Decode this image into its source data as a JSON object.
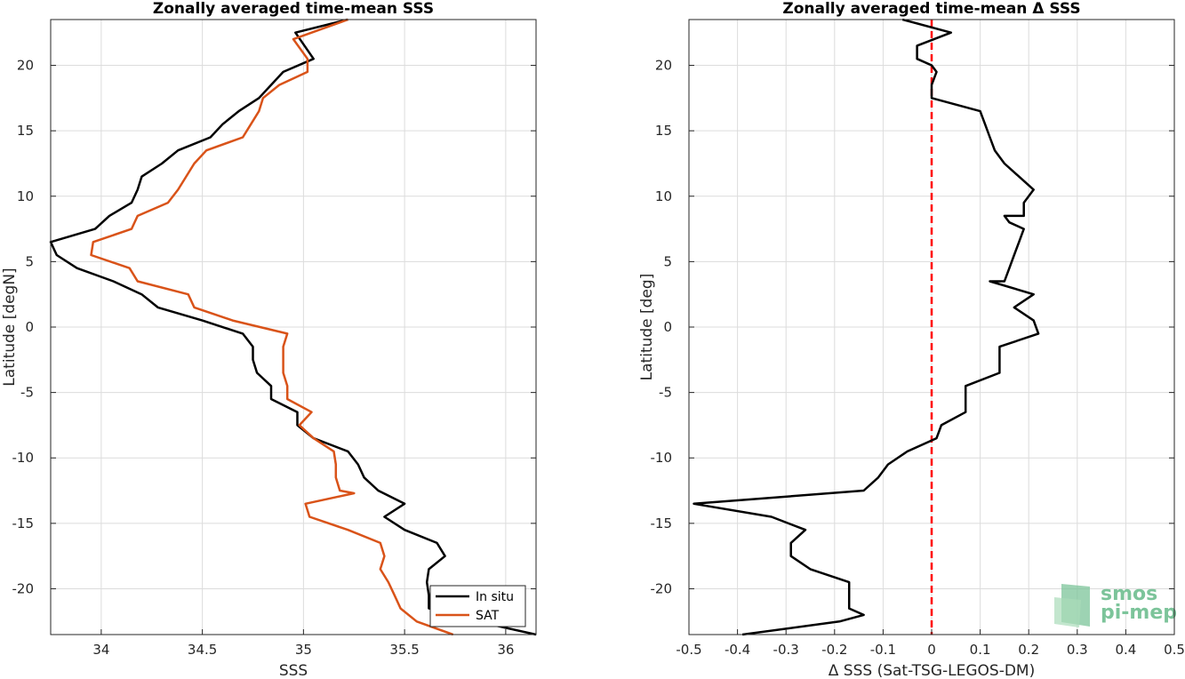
{
  "chart_data": [
    {
      "type": "line",
      "title": "Zonally averaged time-mean SSS",
      "xlabel": "SSS",
      "ylabel": "Latitude [degN]",
      "xlim": [
        33.75,
        36.15
      ],
      "ylim": [
        -23.5,
        23.5
      ],
      "xticks": [
        34,
        34.5,
        35,
        35.5,
        36
      ],
      "xtick_labels": [
        "34",
        "34.5",
        "35",
        "35.5",
        "36"
      ],
      "yticks": [
        -20,
        -15,
        -10,
        -5,
        0,
        5,
        10,
        15,
        20
      ],
      "ytick_labels": [
        "-20",
        "-15",
        "-10",
        "-5",
        "0",
        "5",
        "10",
        "15",
        "20"
      ],
      "grid": true,
      "legend_position": "bottom-right",
      "series": [
        {
          "name": "In situ",
          "color": "#000000",
          "points": [
            [
              35.22,
              23.5
            ],
            [
              34.96,
              22.5
            ],
            [
              35.05,
              20.5
            ],
            [
              34.9,
              19.5
            ],
            [
              34.78,
              17.5
            ],
            [
              34.68,
              16.5
            ],
            [
              34.6,
              15.5
            ],
            [
              34.54,
              14.5
            ],
            [
              34.38,
              13.5
            ],
            [
              34.3,
              12.5
            ],
            [
              34.2,
              11.5
            ],
            [
              34.18,
              10.5
            ],
            [
              34.15,
              9.5
            ],
            [
              34.04,
              8.5
            ],
            [
              33.97,
              7.5
            ],
            [
              33.75,
              6.5
            ],
            [
              33.78,
              5.5
            ],
            [
              33.88,
              4.5
            ],
            [
              34.06,
              3.5
            ],
            [
              34.2,
              2.5
            ],
            [
              34.28,
              1.5
            ],
            [
              34.5,
              0.5
            ],
            [
              34.7,
              -0.5
            ],
            [
              34.75,
              -1.5
            ],
            [
              34.75,
              -2.5
            ],
            [
              34.77,
              -3.5
            ],
            [
              34.84,
              -4.5
            ],
            [
              34.84,
              -5.5
            ],
            [
              34.97,
              -6.5
            ],
            [
              34.97,
              -7.5
            ],
            [
              35.05,
              -8.5
            ],
            [
              35.22,
              -9.5
            ],
            [
              35.27,
              -10.5
            ],
            [
              35.3,
              -11.5
            ],
            [
              35.37,
              -12.5
            ],
            [
              35.5,
              -13.5
            ],
            [
              35.4,
              -14.5
            ],
            [
              35.5,
              -15.5
            ],
            [
              35.66,
              -16.5
            ],
            [
              35.7,
              -17.5
            ],
            [
              35.62,
              -18.5
            ],
            [
              35.61,
              -19.5
            ],
            [
              35.62,
              -20.5
            ],
            [
              35.62,
              -21.5
            ],
            [
              35.86,
              -22.5
            ],
            [
              36.15,
              -23.5
            ]
          ]
        },
        {
          "name": "SAT",
          "color": "#d95319",
          "points": [
            [
              35.22,
              23.5
            ],
            [
              34.95,
              22.0
            ],
            [
              35.02,
              20.5
            ],
            [
              35.02,
              19.5
            ],
            [
              34.88,
              18.5
            ],
            [
              34.8,
              17.5
            ],
            [
              34.78,
              16.5
            ],
            [
              34.74,
              15.5
            ],
            [
              34.7,
              14.5
            ],
            [
              34.52,
              13.5
            ],
            [
              34.46,
              12.5
            ],
            [
              34.38,
              10.5
            ],
            [
              34.33,
              9.5
            ],
            [
              34.18,
              8.5
            ],
            [
              34.15,
              7.5
            ],
            [
              33.96,
              6.5
            ],
            [
              33.95,
              5.5
            ],
            [
              34.14,
              4.5
            ],
            [
              34.18,
              3.5
            ],
            [
              34.43,
              2.5
            ],
            [
              34.46,
              1.5
            ],
            [
              34.65,
              0.5
            ],
            [
              34.92,
              -0.5
            ],
            [
              34.9,
              -1.5
            ],
            [
              34.9,
              -3.5
            ],
            [
              34.92,
              -4.5
            ],
            [
              34.92,
              -5.5
            ],
            [
              35.04,
              -6.5
            ],
            [
              34.98,
              -7.5
            ],
            [
              35.05,
              -8.5
            ],
            [
              35.15,
              -9.5
            ],
            [
              35.16,
              -10.5
            ],
            [
              35.16,
              -11.5
            ],
            [
              35.18,
              -12.5
            ],
            [
              35.25,
              -12.7
            ],
            [
              35.01,
              -13.5
            ],
            [
              35.03,
              -14.5
            ],
            [
              35.22,
              -15.5
            ],
            [
              35.38,
              -16.5
            ],
            [
              35.4,
              -17.5
            ],
            [
              35.38,
              -18.5
            ],
            [
              35.42,
              -19.5
            ],
            [
              35.45,
              -20.5
            ],
            [
              35.48,
              -21.5
            ],
            [
              35.56,
              -22.5
            ],
            [
              35.74,
              -23.5
            ]
          ]
        }
      ]
    },
    {
      "type": "line",
      "title": "Zonally averaged time-mean Δ SSS",
      "xlabel": "Δ SSS (Sat-TSG-LEGOS-DM)",
      "ylabel": "Latitude [deg]",
      "xlim": [
        -0.5,
        0.5
      ],
      "ylim": [
        -23.5,
        23.5
      ],
      "xticks": [
        -0.5,
        -0.4,
        -0.3,
        -0.2,
        -0.1,
        0,
        0.1,
        0.2,
        0.3,
        0.4,
        0.5
      ],
      "xtick_labels": [
        "-0.5",
        "-0.4",
        "-0.3",
        "-0.2",
        "-0.1",
        "0",
        "0.1",
        "0.2",
        "0.3",
        "0.4",
        "0.5"
      ],
      "yticks": [
        -20,
        -15,
        -10,
        -5,
        0,
        5,
        10,
        15,
        20
      ],
      "ytick_labels": [
        "-20",
        "-15",
        "-10",
        "-5",
        "0",
        "5",
        "10",
        "15",
        "20"
      ],
      "grid": true,
      "reference_line": {
        "x": 0,
        "color": "#ff0000",
        "style": "dashed"
      },
      "series": [
        {
          "color": "#000000",
          "points": [
            [
              -0.06,
              23.5
            ],
            [
              0.04,
              22.5
            ],
            [
              -0.03,
              21.5
            ],
            [
              -0.03,
              20.5
            ],
            [
              0.0,
              20.0
            ],
            [
              0.01,
              19.5
            ],
            [
              0.0,
              18.5
            ],
            [
              0.0,
              17.5
            ],
            [
              0.1,
              16.5
            ],
            [
              0.11,
              15.5
            ],
            [
              0.12,
              14.5
            ],
            [
              0.13,
              13.5
            ],
            [
              0.15,
              12.5
            ],
            [
              0.18,
              11.5
            ],
            [
              0.21,
              10.5
            ],
            [
              0.19,
              9.5
            ],
            [
              0.19,
              8.5
            ],
            [
              0.15,
              8.5
            ],
            [
              0.16,
              8.0
            ],
            [
              0.19,
              7.5
            ],
            [
              0.18,
              6.5
            ],
            [
              0.17,
              5.5
            ],
            [
              0.16,
              4.5
            ],
            [
              0.15,
              3.5
            ],
            [
              0.12,
              3.5
            ],
            [
              0.21,
              2.5
            ],
            [
              0.17,
              1.5
            ],
            [
              0.21,
              0.5
            ],
            [
              0.22,
              -0.5
            ],
            [
              0.14,
              -1.5
            ],
            [
              0.14,
              -3.5
            ],
            [
              0.07,
              -4.5
            ],
            [
              0.07,
              -5.5
            ],
            [
              0.07,
              -6.5
            ],
            [
              0.02,
              -7.5
            ],
            [
              0.01,
              -8.5
            ],
            [
              -0.05,
              -9.5
            ],
            [
              -0.09,
              -10.5
            ],
            [
              -0.11,
              -11.5
            ],
            [
              -0.14,
              -12.5
            ],
            [
              -0.49,
              -13.5
            ],
            [
              -0.33,
              -14.5
            ],
            [
              -0.26,
              -15.5
            ],
            [
              -0.29,
              -16.5
            ],
            [
              -0.29,
              -17.5
            ],
            [
              -0.25,
              -18.5
            ],
            [
              -0.17,
              -19.5
            ],
            [
              -0.17,
              -20.5
            ],
            [
              -0.17,
              -21.5
            ],
            [
              -0.14,
              -22.0
            ],
            [
              -0.19,
              -22.5
            ],
            [
              -0.39,
              -23.5
            ]
          ]
        }
      ]
    }
  ],
  "legend": {
    "entries": [
      "In situ",
      "SAT"
    ]
  },
  "logo": {
    "line1": "smos",
    "line2": "pi-mep"
  }
}
